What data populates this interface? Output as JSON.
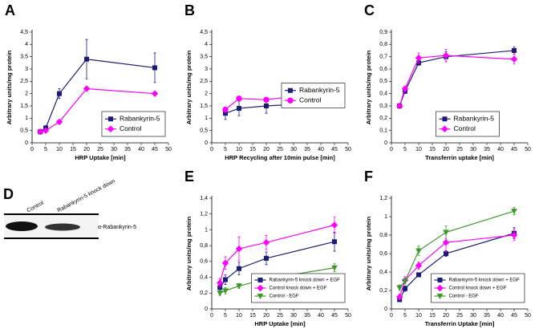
{
  "chart_data": [
    {
      "type": "line",
      "panel": "A",
      "x_label": "HRP Uptake [min]",
      "y_label": "Arbitrary units/mg protein",
      "x": [
        3,
        5,
        10,
        20,
        45
      ],
      "xlim": [
        0,
        50
      ],
      "xticks": [
        0,
        5,
        10,
        15,
        20,
        25,
        30,
        35,
        40,
        45,
        50
      ],
      "ylim": [
        0,
        4.5
      ],
      "yticks": [
        0,
        {
          "value": 0.5,
          "label": "0,5"
        },
        1,
        {
          "value": 1.5,
          "label": "1,5"
        },
        2,
        {
          "value": 2.5,
          "label": "2,5"
        },
        3,
        {
          "value": 3.5,
          "label": "3,5"
        },
        4,
        {
          "value": 4.5,
          "label": "4,5"
        }
      ],
      "legend": "lower right",
      "series": [
        {
          "name": "Rabankyrin-5",
          "color": "#1c1c78",
          "marker": "square",
          "values": [
            0.45,
            0.6,
            2.0,
            3.4,
            3.05
          ],
          "errors": [
            0.1,
            0.1,
            0.2,
            0.8,
            0.6
          ]
        },
        {
          "name": "Control",
          "color": "#ff00ff",
          "marker": "diamond",
          "values": [
            0.45,
            0.5,
            0.85,
            2.2,
            2.0
          ],
          "errors": [
            0.05,
            0.05,
            0.05,
            0.05,
            0.05
          ]
        }
      ]
    },
    {
      "type": "line",
      "panel": "B",
      "x_label": "HRP Recycling after 10min pulse  [min]",
      "y_label": "Arbitrary units/mg protein",
      "x": [
        5,
        10,
        20,
        45
      ],
      "xlim": [
        0,
        50
      ],
      "xticks": [
        0,
        5,
        10,
        15,
        20,
        25,
        30,
        35,
        40,
        45,
        50
      ],
      "ylim": [
        0,
        4.5
      ],
      "yticks": [
        0,
        {
          "value": 0.5,
          "label": "0,5"
        },
        1,
        {
          "value": 1.5,
          "label": "1,5"
        },
        2,
        {
          "value": 2.5,
          "label": "2,5"
        },
        3,
        {
          "value": 3.5,
          "label": "3,5"
        },
        4,
        {
          "value": 4.5,
          "label": "4,5"
        }
      ],
      "legend": "center right",
      "series": [
        {
          "name": "Rabankyrin-5",
          "color": "#1c1c78",
          "marker": "square",
          "values": [
            1.2,
            1.4,
            1.5,
            1.65
          ],
          "errors": [
            0.25,
            0.3,
            0.3,
            0.15
          ]
        },
        {
          "name": "Control",
          "color": "#ff00ff",
          "marker": "circle",
          "values": [
            1.35,
            1.8,
            1.75,
            2.1
          ],
          "errors": [
            0.05,
            0.05,
            0.05,
            0.05
          ]
        }
      ]
    },
    {
      "type": "line",
      "panel": "C",
      "x_label": "Transferrin uptake [min]",
      "y_label": "Arbitrary units/mg protein",
      "x": [
        3,
        5,
        10,
        20,
        45
      ],
      "xlim": [
        0,
        50
      ],
      "xticks": [
        0,
        5,
        10,
        15,
        20,
        25,
        30,
        35,
        40,
        45,
        50
      ],
      "ylim": [
        0,
        0.9
      ],
      "yticks": [
        0,
        {
          "value": 0.1,
          "label": "0,1"
        },
        {
          "value": 0.2,
          "label": "0,2"
        },
        {
          "value": 0.3,
          "label": "0,3"
        },
        {
          "value": 0.4,
          "label": "0,4"
        },
        {
          "value": 0.5,
          "label": "0,5"
        },
        {
          "value": 0.6,
          "label": "0,6"
        },
        {
          "value": 0.7,
          "label": "0,7"
        },
        {
          "value": 0.8,
          "label": "0,8"
        },
        {
          "value": 0.9,
          "label": "0,9"
        }
      ],
      "legend": "lower center",
      "series": [
        {
          "name": "Rabankyrin-5",
          "color": "#1c1c78",
          "marker": "square",
          "values": [
            0.3,
            0.42,
            0.65,
            0.7,
            0.75
          ],
          "errors": [
            0.01,
            0.02,
            0.02,
            0.04,
            0.03
          ]
        },
        {
          "name": "Control",
          "color": "#ff00ff",
          "marker": "diamond",
          "values": [
            0.3,
            0.44,
            0.69,
            0.71,
            0.68
          ],
          "errors": [
            0.01,
            0.02,
            0.04,
            0.05,
            0.04
          ]
        }
      ]
    },
    {
      "type": "line",
      "panel": "E",
      "x_label": "HRP Uptake [min]",
      "y_label": "Arbitrary units/mg protein",
      "x": [
        3,
        5,
        10,
        20,
        45
      ],
      "xlim": [
        0,
        50
      ],
      "xticks": [
        0,
        5,
        10,
        15,
        20,
        25,
        30,
        35,
        40,
        45,
        50
      ],
      "ylim": [
        0,
        1.4
      ],
      "yticks": [
        0,
        {
          "value": 0.2,
          "label": "0,2"
        },
        {
          "value": 0.4,
          "label": "0,4"
        },
        {
          "value": 0.6,
          "label": "0,6"
        },
        {
          "value": 0.8,
          "label": "0,8"
        },
        1,
        {
          "value": 1.2,
          "label": "1,2"
        },
        {
          "value": 1.4,
          "label": "1,4"
        }
      ],
      "legend": "lower right",
      "series": [
        {
          "name": "Rabankyrin-5 knock down + EGF",
          "color": "#1c1c78",
          "marker": "square",
          "values": [
            0.27,
            0.37,
            0.51,
            0.64,
            0.85
          ],
          "errors": [
            0.05,
            0.06,
            0.08,
            0.08,
            0.12
          ]
        },
        {
          "name": "Control knock down + EGF",
          "color": "#ff00ff",
          "marker": "diamond",
          "values": [
            0.33,
            0.58,
            0.76,
            0.84,
            1.06
          ],
          "errors": [
            0.05,
            0.08,
            0.15,
            0.09,
            0.1
          ]
        },
        {
          "name": "Control - EGF",
          "color": "#3c9a28",
          "marker": "triangle",
          "values": [
            0.2,
            0.23,
            0.29,
            0.38,
            0.52
          ],
          "errors": [
            0.03,
            0.04,
            0.03,
            0.04,
            0.05
          ]
        }
      ]
    },
    {
      "type": "line",
      "panel": "F",
      "x_label": "Transferrin Uptake [min]",
      "y_label": "Arbitrary units/mg protein",
      "x": [
        3,
        5,
        10,
        20,
        45
      ],
      "xlim": [
        0,
        50
      ],
      "xticks": [
        0,
        5,
        10,
        15,
        20,
        25,
        30,
        35,
        40,
        45,
        50
      ],
      "ylim": [
        0,
        1.2
      ],
      "yticks": [
        0,
        {
          "value": 0.2,
          "label": "0,2"
        },
        {
          "value": 0.4,
          "label": "0,4"
        },
        {
          "value": 0.6,
          "label": "0,6"
        },
        {
          "value": 0.8,
          "label": "0,8"
        },
        1,
        {
          "value": 1.2,
          "label": "1,2"
        }
      ],
      "legend": "lower right",
      "series": [
        {
          "name": "Rabankyrin-5 knock down + EGF",
          "color": "#1c1c78",
          "marker": "square",
          "values": [
            0.1,
            0.22,
            0.37,
            0.6,
            0.82
          ],
          "errors": [
            0.02,
            0.03,
            0.02,
            0.03,
            0.06
          ]
        },
        {
          "name": "Control knock down + EGF",
          "color": "#ff00ff",
          "marker": "diamond",
          "values": [
            0.13,
            0.31,
            0.47,
            0.72,
            0.8
          ],
          "errors": [
            0.03,
            0.04,
            0.04,
            0.1,
            0.06
          ]
        },
        {
          "name": "Control - EGF",
          "color": "#3c9a28",
          "marker": "triangle",
          "values": [
            0.23,
            0.3,
            0.63,
            0.83,
            1.06
          ],
          "errors": [
            0.03,
            0.03,
            0.05,
            0.07,
            0.04
          ]
        }
      ]
    }
  ],
  "blot": {
    "panel": "D",
    "lanes": [
      "Control",
      "Rabankyrin-5 knock down"
    ],
    "label": "α-Rabankyrin-5"
  }
}
